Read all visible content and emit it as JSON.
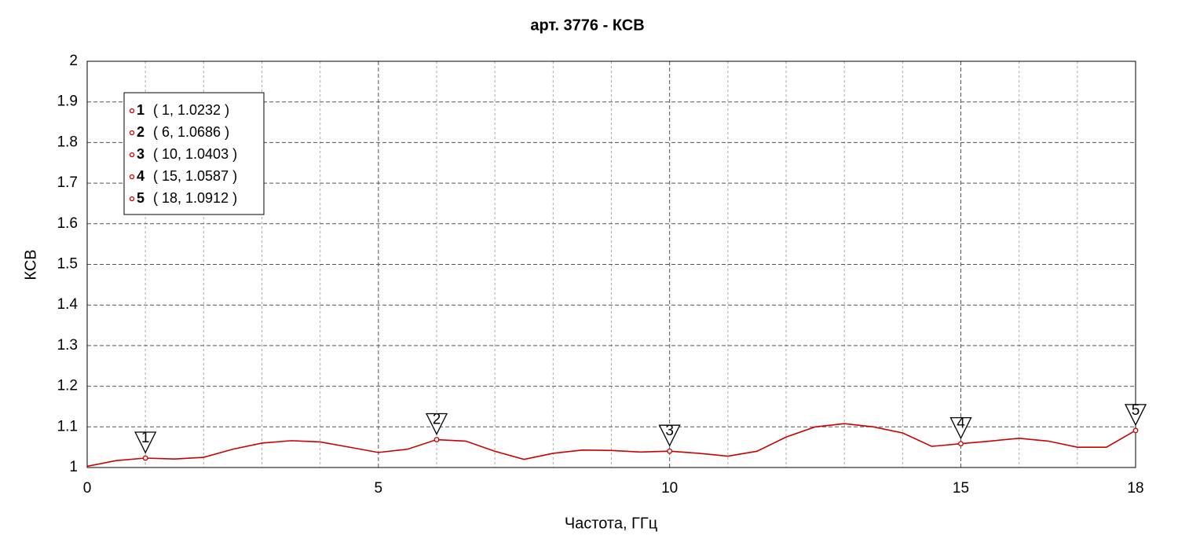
{
  "chart_data": {
    "type": "line",
    "title": "арт. 3776 - КСВ",
    "xlabel": "Частота, ГГц",
    "ylabel": "КСВ",
    "x": [
      0,
      0.5,
      1,
      1.5,
      2,
      2.5,
      3,
      3.5,
      4,
      4.5,
      5,
      5.5,
      6,
      6.5,
      7,
      7.5,
      8,
      8.5,
      9,
      9.5,
      10,
      10.5,
      11,
      11.5,
      12,
      12.5,
      13,
      13.5,
      14,
      14.5,
      15,
      15.5,
      16,
      16.5,
      17,
      17.5,
      18
    ],
    "series": [
      {
        "name": "КСВ",
        "color": "#cc0000",
        "values": [
          1.003,
          1.017,
          1.0232,
          1.021,
          1.025,
          1.045,
          1.06,
          1.066,
          1.063,
          1.05,
          1.037,
          1.045,
          1.0686,
          1.065,
          1.04,
          1.02,
          1.035,
          1.043,
          1.042,
          1.038,
          1.0403,
          1.035,
          1.028,
          1.04,
          1.075,
          1.1,
          1.108,
          1.1,
          1.085,
          1.052,
          1.0587,
          1.065,
          1.072,
          1.065,
          1.05,
          1.05,
          1.0912
        ]
      }
    ],
    "markers": [
      {
        "label": "1",
        "x": 1,
        "y": 1.0232,
        "text": "( 1, 1.0232 )"
      },
      {
        "label": "2",
        "x": 6,
        "y": 1.0686,
        "text": "( 6, 1.0686 )"
      },
      {
        "label": "3",
        "x": 10,
        "y": 1.0403,
        "text": "( 10, 1.0403 )"
      },
      {
        "label": "4",
        "x": 15,
        "y": 1.0587,
        "text": "( 15, 1.0587 )"
      },
      {
        "label": "5",
        "x": 18,
        "y": 1.0912,
        "text": "( 18, 1.0912 )"
      }
    ],
    "xlim": [
      0,
      18
    ],
    "xticks": [
      0,
      5,
      10,
      15,
      18
    ],
    "xminorticks": [
      1,
      2,
      3,
      4,
      6,
      7,
      8,
      9,
      11,
      12,
      13,
      14,
      16,
      17
    ],
    "ylim": [
      1,
      2
    ],
    "yticks": [
      1,
      1.1,
      1.2,
      1.3,
      1.4,
      1.5,
      1.6,
      1.7,
      1.8,
      1.9,
      2
    ],
    "grid": true
  }
}
